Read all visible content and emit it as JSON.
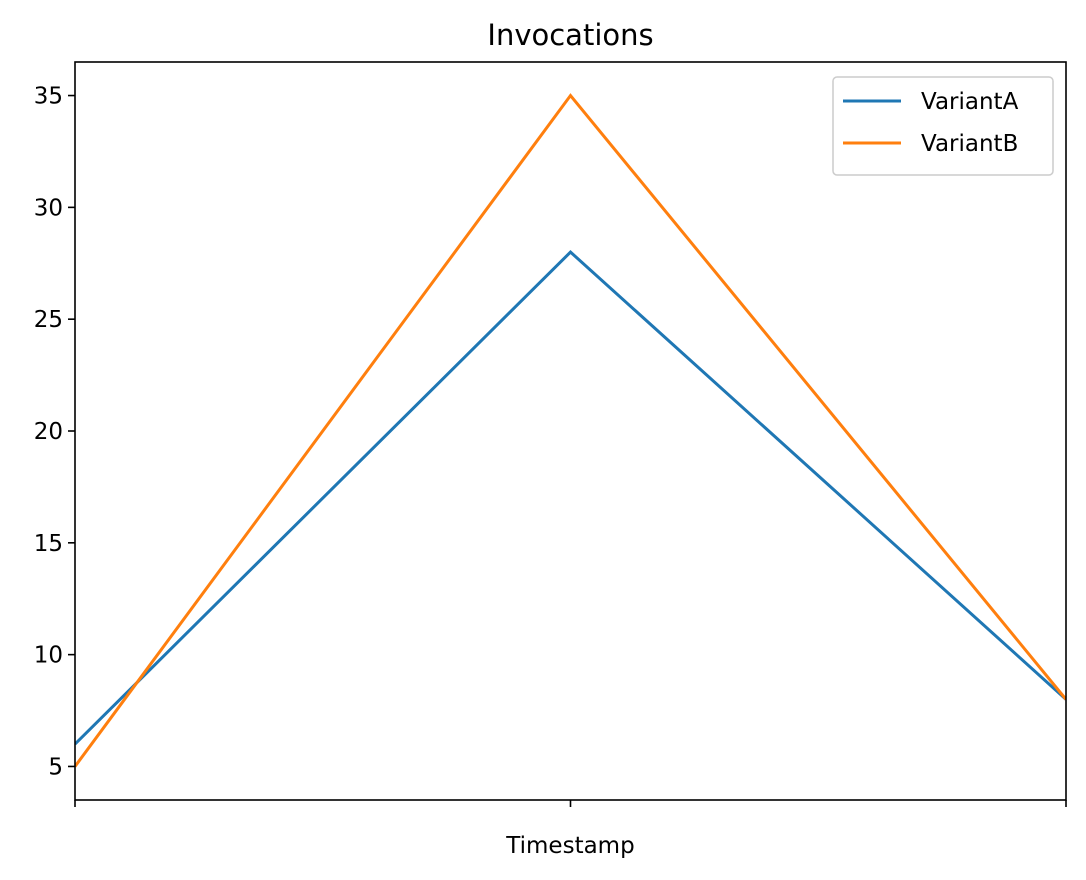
{
  "chart_data": {
    "type": "line",
    "title": "Invocations",
    "xlabel": "Timestamp",
    "ylabel": "",
    "x_ticks": [
      "",
      "",
      ""
    ],
    "x": [
      0,
      1,
      2
    ],
    "ylim": [
      3.5,
      36.5
    ],
    "y_ticks": [
      5,
      10,
      15,
      20,
      25,
      30,
      35
    ],
    "grid": false,
    "legend_position": "top-right",
    "series": [
      {
        "name": "VariantA",
        "color": "#1f77b4",
        "values": [
          6,
          28,
          8
        ]
      },
      {
        "name": "VariantB",
        "color": "#ff7f0e",
        "values": [
          5,
          35,
          8
        ]
      }
    ]
  }
}
